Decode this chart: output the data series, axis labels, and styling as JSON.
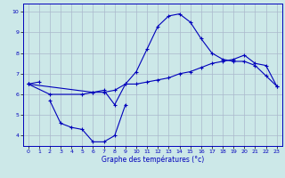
{
  "xlabel": "Graphe des températures (°c)",
  "background_color": "#cce8e8",
  "grid_color": "#aab8cc",
  "line_color": "#0000bb",
  "series": {
    "line1": {
      "x": [
        0,
        1
      ],
      "y": [
        6.5,
        6.6
      ]
    },
    "line2": {
      "x": [
        2,
        3,
        4,
        5,
        6,
        7,
        8,
        9
      ],
      "y": [
        5.7,
        4.6,
        4.4,
        4.3,
        3.7,
        3.7,
        4.0,
        5.5
      ]
    },
    "line3": {
      "x": [
        0,
        2,
        5,
        6,
        7,
        8,
        9,
        10,
        11,
        12,
        13,
        14,
        15,
        16,
        17,
        18,
        19,
        20,
        21,
        22,
        23
      ],
      "y": [
        6.5,
        6.0,
        6.0,
        6.1,
        6.1,
        6.2,
        6.5,
        6.5,
        6.6,
        6.7,
        6.8,
        7.0,
        7.1,
        7.3,
        7.5,
        7.6,
        7.7,
        7.9,
        7.5,
        7.4,
        6.4
      ]
    },
    "line4": {
      "x": [
        0,
        6,
        7,
        8,
        9,
        10,
        11,
        12,
        13,
        14,
        15,
        16,
        17,
        18,
        19,
        20,
        21,
        22,
        23
      ],
      "y": [
        6.5,
        6.1,
        6.2,
        5.5,
        6.5,
        7.1,
        8.2,
        9.3,
        9.8,
        9.9,
        9.5,
        8.7,
        8.0,
        7.7,
        7.6,
        7.6,
        7.4,
        6.9,
        6.4
      ]
    }
  },
  "ylim": [
    3.5,
    10.4
  ],
  "xlim": [
    -0.5,
    23.5
  ],
  "yticks": [
    4,
    5,
    6,
    7,
    8,
    9,
    10
  ],
  "xticks": [
    0,
    1,
    2,
    3,
    4,
    5,
    6,
    7,
    8,
    9,
    10,
    11,
    12,
    13,
    14,
    15,
    16,
    17,
    18,
    19,
    20,
    21,
    22,
    23
  ]
}
